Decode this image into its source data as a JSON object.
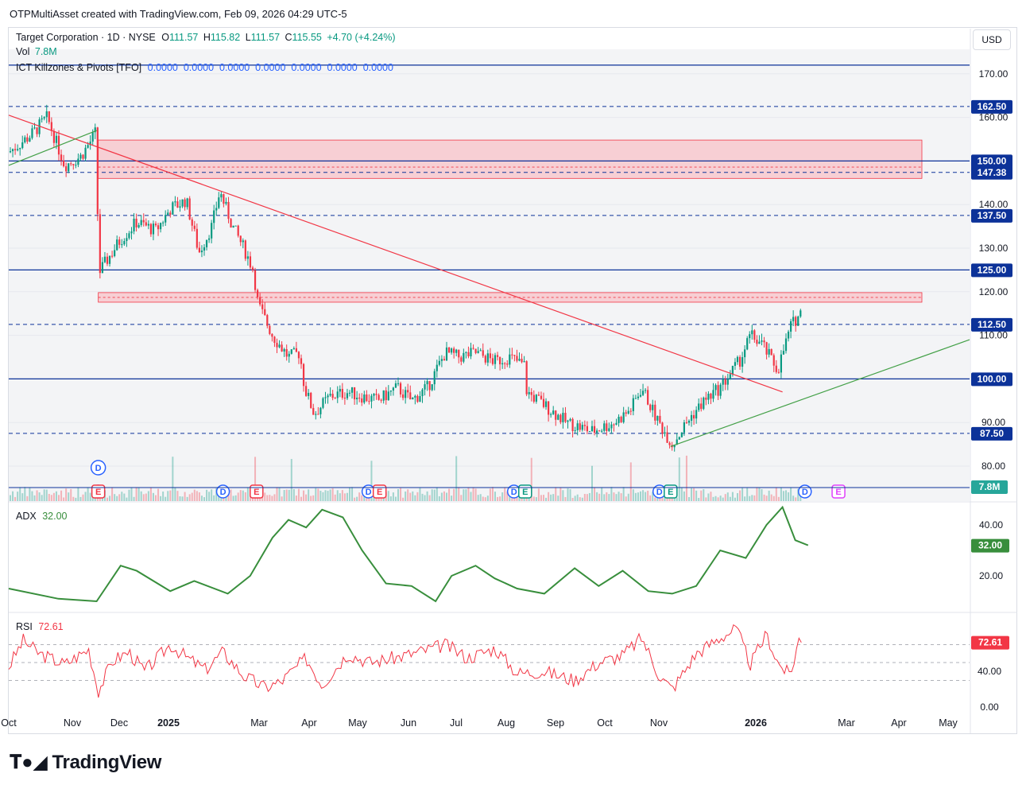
{
  "header": {
    "caption": "OTPMultiAsset created with TradingView.com, Feb 09, 2026 04:29 UTC-5"
  },
  "symbol": {
    "name": "Target Corporation · 1D · NYSE",
    "o_label": "O",
    "o": "111.57",
    "h_label": "H",
    "h": "115.82",
    "l_label": "L",
    "l": "111.57",
    "c_label": "C",
    "c": "115.55",
    "change": "+4.70 (+4.24%)"
  },
  "volume": {
    "label": "Vol",
    "value": "7.8M"
  },
  "indicator": {
    "name": "ICT Killzones & Pivots [TFO]",
    "values": "0.0000  0.0000  0.0000  0.0000  0.0000  0.0000  0.0000"
  },
  "currency_button": "USD",
  "adx": {
    "label": "ADX",
    "value": "32.00"
  },
  "rsi": {
    "label": "RSI",
    "value": "72.61"
  },
  "brand": "TradingView",
  "colors": {
    "up": "#089981",
    "down": "#f23645",
    "level_blue": "#0c3299",
    "zone": "#f7c6cc",
    "trend_red": "#f23645",
    "trend_green": "#43a047",
    "adx_line": "#388e3c",
    "rsi_line": "#f23645"
  },
  "chart_data": {
    "type": "candlestick",
    "price_axis": {
      "ticks": [
        80,
        90,
        100,
        110,
        120,
        130,
        140,
        150,
        160,
        170
      ],
      "tick_labels": [
        "80.00",
        "90.00",
        "100.00",
        "110.00",
        "120.00",
        "130.00",
        "140.00",
        "150.00",
        "160.00",
        "170.00"
      ],
      "ylim": [
        75,
        175
      ]
    },
    "time_axis": {
      "labels": [
        "Oct",
        "Nov",
        "Dec",
        "2025",
        "Mar",
        "Apr",
        "May",
        "Jun",
        "Jul",
        "Aug",
        "Sep",
        "Oct",
        "Nov",
        "2026",
        "Mar",
        "Apr",
        "May"
      ]
    },
    "price_labels": [
      {
        "value": 162.5,
        "label": "162.50"
      },
      {
        "value": 150.0,
        "label": "150.00"
      },
      {
        "value": 147.38,
        "label": "147.38"
      },
      {
        "value": 137.5,
        "label": "137.50"
      },
      {
        "value": 125.0,
        "label": "125.00"
      },
      {
        "value": 112.5,
        "label": "112.50"
      },
      {
        "value": 100.0,
        "label": "100.00"
      },
      {
        "value": 87.5,
        "label": "87.50"
      }
    ],
    "volume_label": "7.8M",
    "horizontal_levels": [
      {
        "value": 172.0,
        "style": "solid"
      },
      {
        "value": 162.5,
        "style": "dashed"
      },
      {
        "value": 150.0,
        "style": "solid"
      },
      {
        "value": 147.38,
        "style": "dashed"
      },
      {
        "value": 137.5,
        "style": "dashed"
      },
      {
        "value": 125.0,
        "style": "solid"
      },
      {
        "value": 112.5,
        "style": "dashed"
      },
      {
        "value": 100.0,
        "style": "solid"
      },
      {
        "value": 87.5,
        "style": "dashed"
      }
    ],
    "zones": [
      {
        "from": 146.0,
        "to": 154.8,
        "mid": 148.6
      },
      {
        "from": 117.6,
        "to": 119.8,
        "mid": 118.7
      }
    ],
    "trendlines": [
      {
        "color": "red",
        "from": {
          "date": "2024-10-01",
          "price": 160.5
        },
        "to": {
          "date": "2026-01-28",
          "price": 97.0
        }
      },
      {
        "color": "green",
        "from": {
          "date": "2025-11-19",
          "price": 84.5
        },
        "to": {
          "date": "2026-05-25",
          "price": 109.0
        }
      },
      {
        "color": "green",
        "from": {
          "date": "2024-10-01",
          "price": 149.0
        },
        "to": {
          "date": "2024-11-25",
          "price": 157.0
        }
      }
    ],
    "price_path": [
      [
        "2024-10-01",
        152
      ],
      [
        "2024-10-15",
        156
      ],
      [
        "2024-10-25",
        160
      ],
      [
        "2024-11-05",
        149
      ],
      [
        "2024-11-15",
        151
      ],
      [
        "2024-11-22",
        155
      ],
      [
        "2024-11-25",
        157
      ],
      [
        "2024-11-26",
        124
      ],
      [
        "2024-12-01",
        127
      ],
      [
        "2024-12-10",
        132
      ],
      [
        "2024-12-20",
        136
      ],
      [
        "2025-01-01",
        134
      ],
      [
        "2025-01-10",
        139
      ],
      [
        "2025-01-20",
        141
      ],
      [
        "2025-01-28",
        129
      ],
      [
        "2025-02-05",
        135
      ],
      [
        "2025-02-10",
        143
      ],
      [
        "2025-02-18",
        135
      ],
      [
        "2025-02-25",
        130
      ],
      [
        "2025-03-03",
        125
      ],
      [
        "2025-03-06",
        117
      ],
      [
        "2025-03-15",
        110
      ],
      [
        "2025-03-25",
        105
      ],
      [
        "2025-04-01",
        106
      ],
      [
        "2025-04-04",
        98
      ],
      [
        "2025-04-10",
        92
      ],
      [
        "2025-04-20",
        96
      ],
      [
        "2025-05-01",
        97
      ],
      [
        "2025-05-10",
        96
      ],
      [
        "2025-05-20",
        95
      ],
      [
        "2025-06-01",
        98
      ],
      [
        "2025-06-10",
        95
      ],
      [
        "2025-06-20",
        98
      ],
      [
        "2025-07-01",
        106
      ],
      [
        "2025-07-10",
        105
      ],
      [
        "2025-07-20",
        106
      ],
      [
        "2025-08-01",
        104
      ],
      [
        "2025-08-10",
        105
      ],
      [
        "2025-08-20",
        103
      ],
      [
        "2025-08-21",
        97
      ],
      [
        "2025-09-01",
        94
      ],
      [
        "2025-09-15",
        90
      ],
      [
        "2025-10-01",
        88
      ],
      [
        "2025-10-15",
        90
      ],
      [
        "2025-10-25",
        93
      ],
      [
        "2025-11-01",
        98
      ],
      [
        "2025-11-10",
        91
      ],
      [
        "2025-11-20",
        85
      ],
      [
        "2025-12-01",
        91
      ],
      [
        "2025-12-10",
        95
      ],
      [
        "2025-12-20",
        98
      ],
      [
        "2026-01-01",
        104
      ],
      [
        "2026-01-08",
        110
      ],
      [
        "2026-01-15",
        108
      ],
      [
        "2026-01-25",
        102
      ],
      [
        "2026-02-02",
        112
      ],
      [
        "2026-02-09",
        115.55
      ]
    ],
    "event_markers": [
      {
        "date": "2024-11-26",
        "text": "D"
      },
      {
        "date": "2024-11-26",
        "text": "E"
      },
      {
        "date": "2025-02-12",
        "text": "D"
      },
      {
        "date": "2025-03-05",
        "text": "E"
      },
      {
        "date": "2025-05-14",
        "text": "D"
      },
      {
        "date": "2025-05-21",
        "text": "E"
      },
      {
        "date": "2025-08-13",
        "text": "D"
      },
      {
        "date": "2025-08-20",
        "text": "E"
      },
      {
        "date": "2025-11-12",
        "text": "D"
      },
      {
        "date": "2025-11-19",
        "text": "E"
      },
      {
        "date": "2026-02-11",
        "text": "D"
      },
      {
        "date": "2026-03-04",
        "text": "E"
      }
    ],
    "adx": {
      "ticks": [
        20,
        40
      ],
      "tick_labels": [
        "20.00",
        "40.00"
      ],
      "current": "32.00",
      "points": [
        [
          "2024-10-01",
          15
        ],
        [
          "2024-11-01",
          11
        ],
        [
          "2024-11-25",
          10
        ],
        [
          "2024-12-10",
          24
        ],
        [
          "2024-12-20",
          22
        ],
        [
          "2025-01-10",
          14
        ],
        [
          "2025-01-25",
          18
        ],
        [
          "2025-02-15",
          13
        ],
        [
          "2025-03-01",
          20
        ],
        [
          "2025-03-15",
          35
        ],
        [
          "2025-03-25",
          42
        ],
        [
          "2025-04-05",
          39
        ],
        [
          "2025-04-15",
          46
        ],
        [
          "2025-04-28",
          43
        ],
        [
          "2025-05-10",
          30
        ],
        [
          "2025-05-25",
          17
        ],
        [
          "2025-06-10",
          16
        ],
        [
          "2025-06-25",
          10
        ],
        [
          "2025-07-05",
          20
        ],
        [
          "2025-07-20",
          24
        ],
        [
          "2025-08-01",
          19
        ],
        [
          "2025-08-15",
          15
        ],
        [
          "2025-09-01",
          13
        ],
        [
          "2025-09-20",
          23
        ],
        [
          "2025-10-05",
          16
        ],
        [
          "2025-10-20",
          22
        ],
        [
          "2025-11-05",
          14
        ],
        [
          "2025-11-20",
          13
        ],
        [
          "2025-12-05",
          16
        ],
        [
          "2025-12-20",
          30
        ],
        [
          "2026-01-05",
          27
        ],
        [
          "2026-01-18",
          40
        ],
        [
          "2026-01-28",
          47
        ],
        [
          "2026-02-05",
          34
        ],
        [
          "2026-02-13",
          32
        ]
      ]
    },
    "rsi": {
      "ticks": [
        0,
        40
      ],
      "tick_labels": [
        "0.00",
        "40.00"
      ],
      "band_upper": 70,
      "band_lower": 30,
      "current": "72.61",
      "points": [
        [
          "2024-10-01",
          45
        ],
        [
          "2024-10-10",
          75
        ],
        [
          "2024-10-20",
          60
        ],
        [
          "2024-11-05",
          48
        ],
        [
          "2024-11-20",
          65
        ],
        [
          "2024-11-26",
          18
        ],
        [
          "2024-12-05",
          52
        ],
        [
          "2024-12-15",
          62
        ],
        [
          "2024-12-25",
          40
        ],
        [
          "2025-01-10",
          70
        ],
        [
          "2025-01-20",
          56
        ],
        [
          "2025-02-01",
          42
        ],
        [
          "2025-02-12",
          62
        ],
        [
          "2025-02-25",
          35
        ],
        [
          "2025-03-10",
          22
        ],
        [
          "2025-03-20",
          28
        ],
        [
          "2025-04-05",
          55
        ],
        [
          "2025-04-15",
          25
        ],
        [
          "2025-05-01",
          60
        ],
        [
          "2025-05-15",
          50
        ],
        [
          "2025-06-01",
          56
        ],
        [
          "2025-06-15",
          62
        ],
        [
          "2025-07-01",
          70
        ],
        [
          "2025-07-15",
          55
        ],
        [
          "2025-08-01",
          66
        ],
        [
          "2025-08-15",
          38
        ],
        [
          "2025-09-01",
          40
        ],
        [
          "2025-09-20",
          30
        ],
        [
          "2025-10-05",
          50
        ],
        [
          "2025-10-20",
          58
        ],
        [
          "2025-11-01",
          78
        ],
        [
          "2025-11-12",
          35
        ],
        [
          "2025-11-20",
          20
        ],
        [
          "2025-12-05",
          60
        ],
        [
          "2025-12-20",
          78
        ],
        [
          "2025-12-30",
          88
        ],
        [
          "2026-01-08",
          48
        ],
        [
          "2026-01-18",
          82
        ],
        [
          "2026-01-25",
          50
        ],
        [
          "2026-02-02",
          35
        ],
        [
          "2026-02-07",
          76
        ],
        [
          "2026-02-09",
          72.61
        ]
      ]
    }
  }
}
